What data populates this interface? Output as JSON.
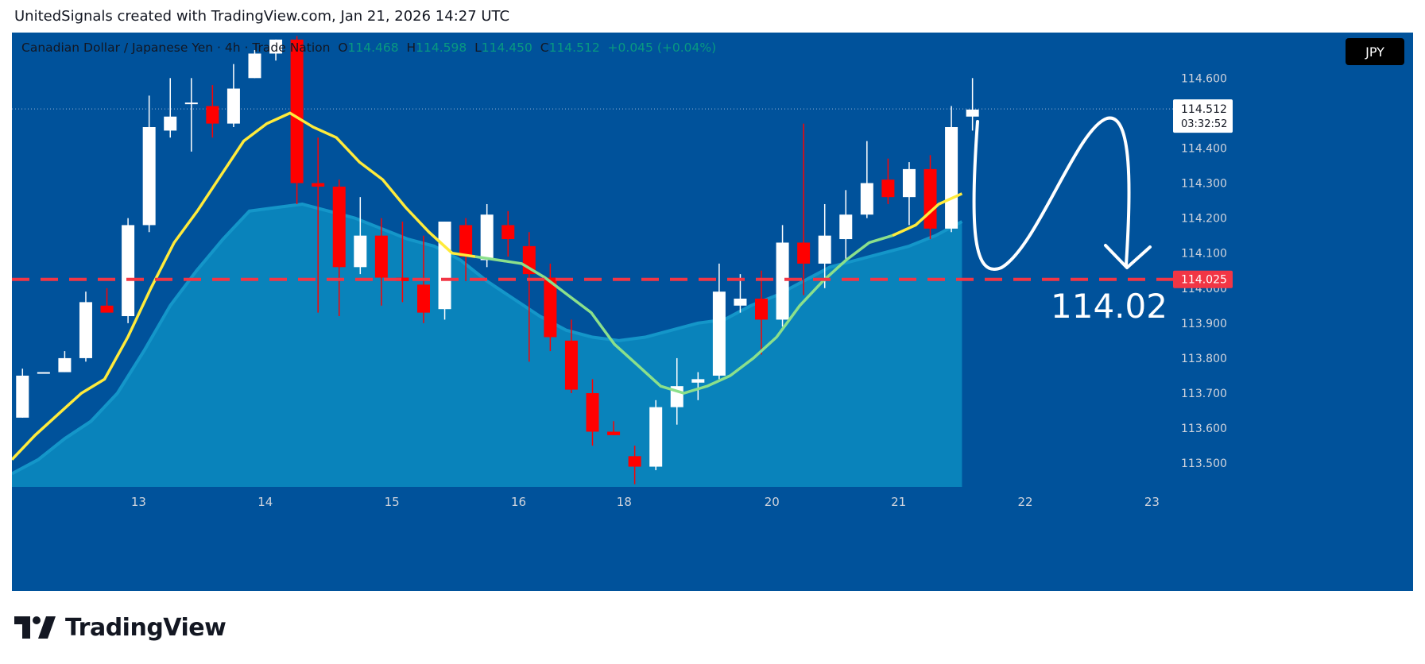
{
  "header": {
    "text": "UnitedSignals created with TradingView.com, Jan 21, 2026 14:27 UTC"
  },
  "legend": {
    "symbol": "Canadian Dollar / Japanese Yen · 4h · Trade Nation",
    "o_label": "O",
    "o_value": "114.468",
    "h_label": "H",
    "h_value": "114.598",
    "l_label": "L",
    "l_value": "114.450",
    "c_label": "C",
    "c_value": "114.512",
    "change": "+0.045 (+0.04%)"
  },
  "currency_badge": "JPY",
  "price_tags": {
    "last_price": "114.512",
    "countdown": "03:32:52",
    "level_price": "114.025"
  },
  "annotation": {
    "text": "114.02"
  },
  "footer": {
    "brand": "TradingView"
  },
  "colors": {
    "background": "#00529B",
    "up_candle": "#FFFFFF",
    "down_candle": "#FF0000",
    "ema_fast": "#FFEB3B",
    "ema_fast_alt": "#8BE08B",
    "ema_band": "#0A86BD",
    "level_line": "#F23645"
  },
  "chart_data": {
    "type": "candlestick",
    "symbol": "Canadian Dollar / Japanese Yen",
    "timeframe": "4h",
    "y_ticks": [
      "113.500",
      "113.600",
      "113.700",
      "113.800",
      "113.900",
      "114.000",
      "114.100",
      "114.200",
      "114.300",
      "114.400",
      "114.500",
      "114.600"
    ],
    "ylim": [
      113.43,
      114.73
    ],
    "x_ticks": [
      {
        "label": "13",
        "bar": 5.5
      },
      {
        "label": "14",
        "bar": 11.5
      },
      {
        "label": "15",
        "bar": 17.5
      },
      {
        "label": "16",
        "bar": 23.5
      },
      {
        "label": "18",
        "bar": 28.5
      },
      {
        "label": "20",
        "bar": 35.5
      },
      {
        "label": "21",
        "bar": 41.5
      },
      {
        "label": "22",
        "bar": 47.5
      },
      {
        "label": "23",
        "bar": 53.5
      }
    ],
    "x_range": [
      -0.5,
      54.5
    ],
    "candles": [
      {
        "o": 113.63,
        "h": 113.77,
        "l": 113.63,
        "c": 113.75
      },
      {
        "o": 113.76,
        "h": 113.76,
        "l": 113.76,
        "c": 113.76
      },
      {
        "o": 113.76,
        "h": 113.82,
        "l": 113.76,
        "c": 113.8
      },
      {
        "o": 113.8,
        "h": 113.99,
        "l": 113.79,
        "c": 113.96
      },
      {
        "o": 113.95,
        "h": 114.0,
        "l": 113.94,
        "c": 113.93
      },
      {
        "o": 113.92,
        "h": 114.2,
        "l": 113.9,
        "c": 114.18
      },
      {
        "o": 114.18,
        "h": 114.55,
        "l": 114.16,
        "c": 114.46
      },
      {
        "o": 114.45,
        "h": 114.6,
        "l": 114.43,
        "c": 114.49
      },
      {
        "o": 114.53,
        "h": 114.6,
        "l": 114.39,
        "c": 114.53
      },
      {
        "o": 114.52,
        "h": 114.58,
        "l": 114.43,
        "c": 114.47
      },
      {
        "o": 114.47,
        "h": 114.64,
        "l": 114.46,
        "c": 114.57
      },
      {
        "o": 114.6,
        "h": 114.68,
        "l": 114.6,
        "c": 114.67
      },
      {
        "o": 114.67,
        "h": 114.71,
        "l": 114.65,
        "c": 114.71
      },
      {
        "o": 114.71,
        "h": 114.72,
        "l": 114.24,
        "c": 114.3
      },
      {
        "o": 114.3,
        "h": 114.43,
        "l": 113.93,
        "c": 114.29
      },
      {
        "o": 114.29,
        "h": 114.31,
        "l": 113.92,
        "c": 114.06
      },
      {
        "o": 114.06,
        "h": 114.26,
        "l": 114.04,
        "c": 114.15
      },
      {
        "o": 114.15,
        "h": 114.2,
        "l": 113.95,
        "c": 114.03
      },
      {
        "o": 114.03,
        "h": 114.19,
        "l": 113.96,
        "c": 114.02
      },
      {
        "o": 114.01,
        "h": 114.15,
        "l": 113.9,
        "c": 113.93
      },
      {
        "o": 113.94,
        "h": 114.19,
        "l": 113.91,
        "c": 114.19
      },
      {
        "o": 114.18,
        "h": 114.2,
        "l": 114.02,
        "c": 114.09
      },
      {
        "o": 114.08,
        "h": 114.24,
        "l": 114.06,
        "c": 114.21
      },
      {
        "o": 114.18,
        "h": 114.22,
        "l": 114.09,
        "c": 114.14
      },
      {
        "o": 114.12,
        "h": 114.16,
        "l": 113.79,
        "c": 114.04
      },
      {
        "o": 114.03,
        "h": 114.07,
        "l": 113.82,
        "c": 113.86
      },
      {
        "o": 113.85,
        "h": 113.91,
        "l": 113.7,
        "c": 113.71
      },
      {
        "o": 113.7,
        "h": 113.74,
        "l": 113.55,
        "c": 113.59
      },
      {
        "o": 113.59,
        "h": 113.62,
        "l": 113.58,
        "c": 113.58
      },
      {
        "o": 113.52,
        "h": 113.55,
        "l": 113.44,
        "c": 113.49
      },
      {
        "o": 113.49,
        "h": 113.68,
        "l": 113.48,
        "c": 113.66
      },
      {
        "o": 113.66,
        "h": 113.8,
        "l": 113.61,
        "c": 113.72
      },
      {
        "o": 113.73,
        "h": 113.76,
        "l": 113.68,
        "c": 113.74
      },
      {
        "o": 113.75,
        "h": 114.07,
        "l": 113.74,
        "c": 113.99
      },
      {
        "o": 113.95,
        "h": 114.04,
        "l": 113.93,
        "c": 113.97
      },
      {
        "o": 113.97,
        "h": 114.05,
        "l": 113.81,
        "c": 113.91
      },
      {
        "o": 113.91,
        "h": 114.18,
        "l": 113.89,
        "c": 114.13
      },
      {
        "o": 114.13,
        "h": 114.47,
        "l": 113.98,
        "c": 114.07
      },
      {
        "o": 114.07,
        "h": 114.24,
        "l": 114.0,
        "c": 114.15
      },
      {
        "o": 114.14,
        "h": 114.28,
        "l": 114.08,
        "c": 114.21
      },
      {
        "o": 114.21,
        "h": 114.42,
        "l": 114.2,
        "c": 114.3
      },
      {
        "o": 114.31,
        "h": 114.37,
        "l": 114.24,
        "c": 114.26
      },
      {
        "o": 114.26,
        "h": 114.36,
        "l": 114.18,
        "c": 114.34
      },
      {
        "o": 114.34,
        "h": 114.38,
        "l": 114.14,
        "c": 114.17
      },
      {
        "o": 114.17,
        "h": 114.52,
        "l": 114.16,
        "c": 114.46
      },
      {
        "o": 114.49,
        "h": 114.6,
        "l": 114.45,
        "c": 114.51
      }
    ],
    "ema_fast": [
      113.51,
      113.58,
      113.64,
      113.7,
      113.74,
      113.86,
      114.0,
      114.13,
      114.22,
      114.32,
      114.42,
      114.47,
      114.5,
      114.46,
      114.43,
      114.36,
      114.31,
      114.23,
      114.16,
      114.1,
      114.09,
      114.08,
      114.07,
      114.03,
      113.98,
      113.93,
      113.84,
      113.78,
      113.72,
      113.7,
      113.72,
      113.75,
      113.8,
      113.86,
      113.95,
      114.02,
      114.08,
      114.13,
      114.15,
      114.18,
      114.24,
      114.27
    ],
    "ema_band_upper": [
      113.47,
      113.51,
      113.57,
      113.62,
      113.7,
      113.82,
      113.95,
      114.05,
      114.14,
      114.22,
      114.23,
      114.24,
      114.22,
      114.2,
      114.17,
      114.14,
      114.12,
      114.08,
      114.02,
      113.97,
      113.92,
      113.88,
      113.86,
      113.85,
      113.86,
      113.88,
      113.9,
      113.91,
      113.95,
      113.98,
      114.02,
      114.06,
      114.08,
      114.1,
      114.12,
      114.15,
      114.19
    ],
    "ema_band_start_bar": 11,
    "ema_band_early": [
      113.47,
      113.51,
      113.57,
      113.62,
      113.7,
      113.82,
      113.95,
      114.05,
      114.14,
      114.22
    ],
    "horizontal_level": 114.025,
    "last_price": 114.512,
    "projection_target": 114.02
  }
}
